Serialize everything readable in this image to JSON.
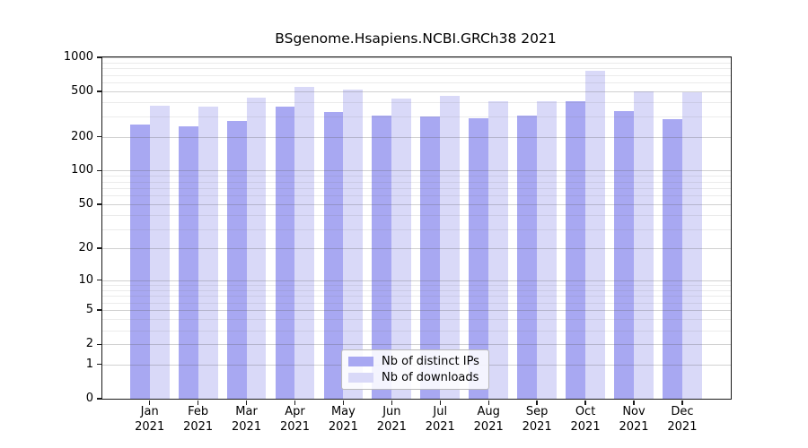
{
  "title": "BSgenome.Hsapiens.NCBI.GRCh38 2021",
  "legend": {
    "items": [
      {
        "label": "Nb of distinct IPs",
        "color": "#a8a8f2"
      },
      {
        "label": "Nb of downloads",
        "color": "#d9d9f8"
      }
    ]
  },
  "chart_data": {
    "type": "bar",
    "title": "BSgenome.Hsapiens.NCBI.GRCh38 2021",
    "categories": [
      "Jan",
      "Feb",
      "Mar",
      "Apr",
      "May",
      "Jun",
      "Jul",
      "Aug",
      "Sep",
      "Oct",
      "Nov",
      "Dec"
    ],
    "year": "2021",
    "series": [
      {
        "name": "Nb of distinct IPs",
        "color": "#a8a8f2",
        "values": [
          255,
          248,
          276,
          368,
          328,
          308,
          302,
          291,
          307,
          411,
          337,
          286
        ]
      },
      {
        "name": "Nb of downloads",
        "color": "#d9d9f8",
        "values": [
          375,
          368,
          442,
          550,
          520,
          434,
          458,
          411,
          411,
          761,
          502,
          493
        ]
      }
    ],
    "xlabel": "",
    "ylabel": "",
    "yscale": "log1p",
    "ylim": [
      0,
      1000
    ],
    "yticks": [
      1000,
      500,
      200,
      100,
      50,
      20,
      10,
      5,
      2,
      1,
      0
    ],
    "grid": true,
    "legend_position": "bottom-center"
  }
}
